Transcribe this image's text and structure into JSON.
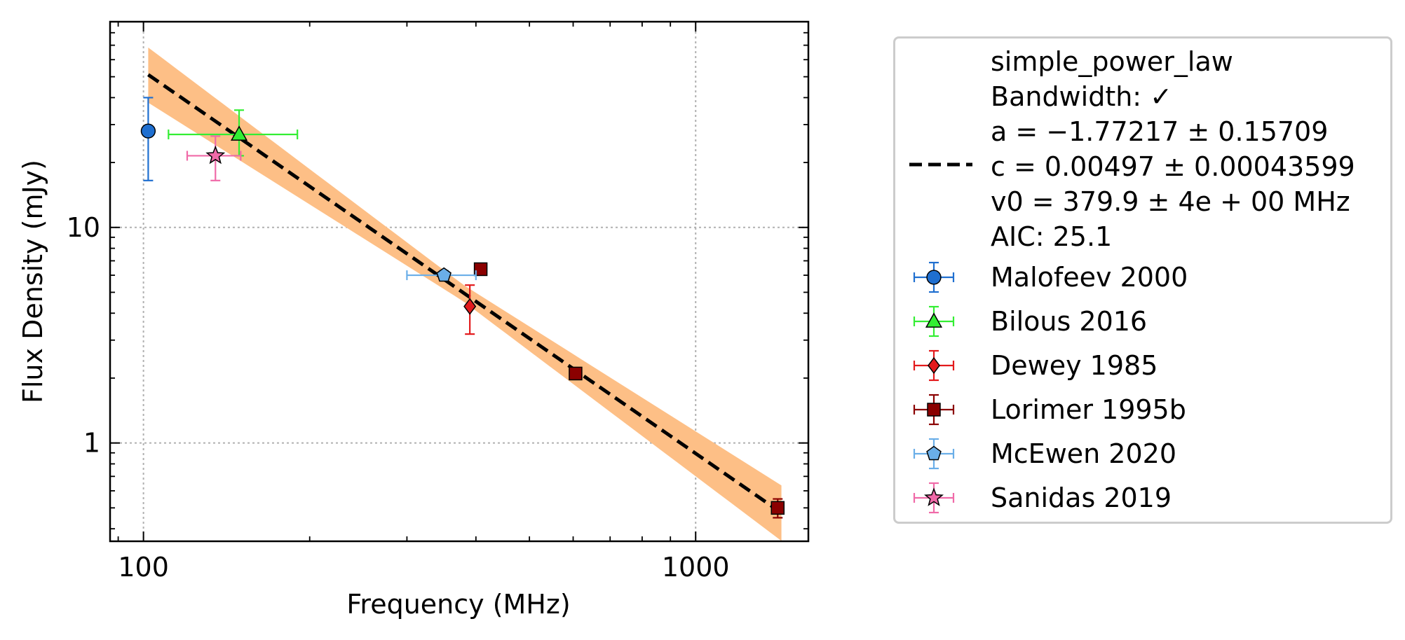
{
  "chart_data": {
    "type": "scatter",
    "xlabel": "Frequency (MHz)",
    "ylabel": "Flux Density (mJy)",
    "xscale": "log",
    "yscale": "log",
    "xlim": [
      87,
      1600
    ],
    "ylim": [
      0.35,
      90
    ],
    "xticks": [
      {
        "value": 100,
        "label": "100"
      },
      {
        "value": 1000,
        "label": "1000"
      }
    ],
    "yticks": [
      {
        "value": 1,
        "label": "1"
      },
      {
        "value": 10,
        "label": "10"
      }
    ],
    "grid": true,
    "legend_position": "right",
    "fit": {
      "model": "simple_power_law",
      "label_lines": [
        "simple_power_law",
        "Bandwidth: ✓",
        "a = −1.77217 ± 0.15709",
        "c = 0.00497 ± 0.00043599",
        "v0 = 379.9 ± 4e + 00 MHz",
        "AIC: 25.1"
      ],
      "a": -1.77217,
      "a_err": 0.15709,
      "c": 0.00497,
      "c_err": 0.00043599,
      "v0": 379.9,
      "x_range": [
        102,
        1430
      ],
      "line_color": "#000000",
      "band_color": "#fdbf86"
    },
    "series": [
      {
        "name": "Malofeev 2000",
        "marker": "circle",
        "color": "#1f6fd0",
        "error_color": "#1f6fd0",
        "points": [
          {
            "x": 102,
            "y": 28.0,
            "yerr_low": 11.5,
            "yerr_high": 12.0,
            "xerr": 0
          }
        ]
      },
      {
        "name": "Bilous 2016",
        "marker": "triangle",
        "color": "#33ee33",
        "error_color": "#33ee33",
        "points": [
          {
            "x": 149,
            "y": 27.0,
            "yerr_low": 5.5,
            "yerr_high": 8.0,
            "xerr_low": 38,
            "xerr_high": 41
          }
        ]
      },
      {
        "name": "Dewey 1985",
        "marker": "diamond",
        "color": "#e31a1c",
        "error_color": "#e31a1c",
        "points": [
          {
            "x": 390,
            "y": 4.3,
            "yerr_low": 1.1,
            "yerr_high": 1.1,
            "xerr": 0
          }
        ]
      },
      {
        "name": "Lorimer 1995b",
        "marker": "square",
        "color": "#8b0000",
        "error_color": "#8b0000",
        "points": [
          {
            "x": 408,
            "y": 6.4,
            "yerr_low": 0,
            "yerr_high": 0,
            "xerr": 0
          },
          {
            "x": 606,
            "y": 2.1,
            "yerr_low": 0.05,
            "yerr_high": 0.05,
            "xerr": 0
          },
          {
            "x": 1408,
            "y": 0.5,
            "yerr_low": 0.05,
            "yerr_high": 0.05,
            "xerr": 0
          }
        ]
      },
      {
        "name": "McEwen 2020",
        "marker": "pentagon",
        "color": "#6aaee8",
        "error_color": "#6aaee8",
        "points": [
          {
            "x": 350,
            "y": 6.0,
            "yerr_low": 0.3,
            "yerr_high": 0.3,
            "xerr_low": 50,
            "xerr_high": 50
          }
        ]
      },
      {
        "name": "Sanidas 2019",
        "marker": "star",
        "color": "#f06aa8",
        "error_color": "#f06aa8",
        "points": [
          {
            "x": 135,
            "y": 21.5,
            "yerr_low": 5.0,
            "yerr_high": 5.0,
            "xerr_low": 15,
            "xerr_high": 15
          }
        ]
      }
    ]
  }
}
